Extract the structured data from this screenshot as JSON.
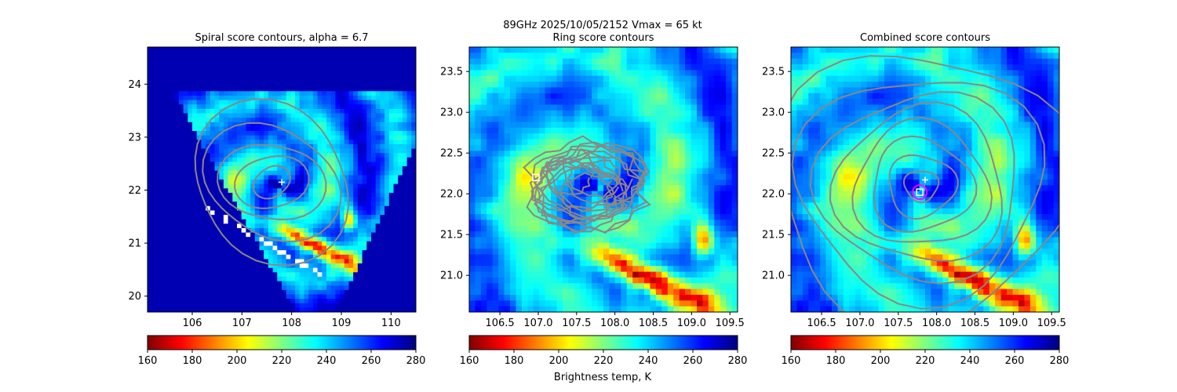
{
  "suptitle": {
    "line1": "89GHz  2025/10/05/2152    Vmax = 65 kt"
  },
  "colorbar_label": "Brightness temp, K",
  "colormap": [
    "#800000",
    "#ff0000",
    "#ff8000",
    "#ffff00",
    "#80ff80",
    "#00ffff",
    "#0080ff",
    "#0000ff",
    "#000080"
  ],
  "chart_data": [
    {
      "type": "heatmap",
      "title": "Spiral score contours, alpha =  6.7",
      "xlim": [
        105.1,
        110.5
      ],
      "ylim": [
        19.7,
        24.7
      ],
      "xticks": [
        106,
        107,
        108,
        109,
        110
      ],
      "yticks": [
        20,
        21,
        22,
        23,
        24
      ],
      "grid": false,
      "center_plus": {
        "x": 107.8,
        "y": 22.15
      },
      "colorbar": {
        "range": [
          160,
          280
        ],
        "ticks": [
          160,
          180,
          200,
          220,
          240,
          260,
          280
        ]
      }
    },
    {
      "type": "heatmap",
      "title": "Ring score contours",
      "xlim": [
        106.1,
        109.6
      ],
      "ylim": [
        20.55,
        23.8
      ],
      "xticks": [
        106.5,
        107.0,
        107.5,
        108.0,
        108.5,
        109.0,
        109.5
      ],
      "yticks": [
        21.0,
        21.5,
        22.0,
        22.5,
        23.0,
        23.5
      ],
      "grid": false,
      "center_square": {
        "x": 106.97,
        "y": 22.2
      },
      "colorbar": {
        "range": [
          160,
          280
        ],
        "ticks": [
          160,
          180,
          200,
          220,
          240,
          260,
          280
        ]
      }
    },
    {
      "type": "heatmap",
      "title": "Combined score contours",
      "xlim": [
        106.1,
        109.6
      ],
      "ylim": [
        20.55,
        23.8
      ],
      "xticks": [
        106.5,
        107.0,
        107.5,
        108.0,
        108.5,
        109.0,
        109.5
      ],
      "yticks": [
        21.0,
        21.5,
        22.0,
        22.5,
        23.0,
        23.5
      ],
      "grid": false,
      "center_plus": {
        "x": 107.85,
        "y": 22.17
      },
      "center_square": {
        "x": 107.78,
        "y": 22.02
      },
      "center_circle": {
        "x": 107.78,
        "y": 22.02
      },
      "colorbar": {
        "range": [
          160,
          280
        ],
        "ticks": [
          160,
          180,
          200,
          220,
          240,
          260,
          280
        ]
      }
    }
  ]
}
